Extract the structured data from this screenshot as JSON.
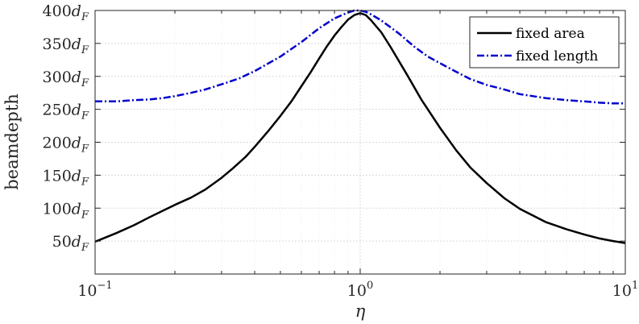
{
  "chart_data": {
    "type": "line",
    "title": "",
    "xlabel": "η",
    "ylabel": "beamdepth",
    "xscale": "log",
    "xlim": [
      0.1,
      10
    ],
    "ylim": [
      0,
      400
    ],
    "grid": true,
    "legend_position": "top-right",
    "x_ticks": [
      {
        "value": 0.1,
        "base": "10",
        "exp": "−1"
      },
      {
        "value": 1,
        "base": "10",
        "exp": "0"
      },
      {
        "value": 10,
        "base": "10",
        "exp": "1"
      }
    ],
    "y_ticks": [
      {
        "value": 50,
        "label": "50",
        "unit": "d",
        "sub": "F"
      },
      {
        "value": 100,
        "label": "100",
        "unit": "d",
        "sub": "F"
      },
      {
        "value": 150,
        "label": "150",
        "unit": "d",
        "sub": "F"
      },
      {
        "value": 200,
        "label": "200",
        "unit": "d",
        "sub": "F"
      },
      {
        "value": 250,
        "label": "250",
        "unit": "d",
        "sub": "F"
      },
      {
        "value": 300,
        "label": "300",
        "unit": "d",
        "sub": "F"
      },
      {
        "value": 350,
        "label": "350",
        "unit": "d",
        "sub": "F"
      },
      {
        "value": 400,
        "label": "400",
        "unit": "d",
        "sub": "F"
      }
    ],
    "series": [
      {
        "name": "fixed area",
        "color": "#000000",
        "style": "solid",
        "x": [
          0.1,
          0.12,
          0.14,
          0.16,
          0.18,
          0.2,
          0.23,
          0.26,
          0.3,
          0.33,
          0.37,
          0.4,
          0.45,
          0.5,
          0.55,
          0.6,
          0.65,
          0.7,
          0.75,
          0.8,
          0.85,
          0.9,
          0.95,
          1.0,
          1.05,
          1.1,
          1.2,
          1.3,
          1.5,
          1.7,
          2.0,
          2.3,
          2.6,
          3.0,
          3.5,
          4.0,
          5.0,
          6.0,
          7.0,
          8.0,
          9.0,
          10.0
        ],
        "y": [
          49,
          62,
          74,
          86,
          96,
          105,
          116,
          128,
          146,
          160,
          178,
          193,
          217,
          240,
          262,
          285,
          306,
          327,
          346,
          362,
          375,
          386,
          393,
          396,
          393,
          385,
          367,
          345,
          303,
          265,
          222,
          188,
          162,
          138,
          115,
          99,
          79,
          68,
          60,
          54,
          50,
          47
        ]
      },
      {
        "name": "fixed length",
        "color": "#0000cc",
        "style": "dash-dot",
        "x": [
          0.1,
          0.12,
          0.14,
          0.16,
          0.18,
          0.2,
          0.23,
          0.26,
          0.3,
          0.35,
          0.4,
          0.5,
          0.6,
          0.7,
          0.8,
          0.9,
          0.95,
          1.0,
          1.05,
          1.1,
          1.2,
          1.4,
          1.6,
          1.8,
          2.0,
          2.3,
          2.6,
          3.0,
          3.5,
          4.0,
          5.0,
          6.0,
          7.0,
          8.0,
          9.0,
          10.0
        ],
        "y": [
          262,
          262,
          264,
          265,
          267,
          270,
          275,
          280,
          288,
          297,
          308,
          330,
          352,
          373,
          388,
          397,
          400,
          400,
          398,
          394,
          385,
          365,
          345,
          330,
          320,
          307,
          296,
          287,
          280,
          273,
          267,
          264,
          262,
          260,
          259,
          259
        ]
      }
    ]
  }
}
